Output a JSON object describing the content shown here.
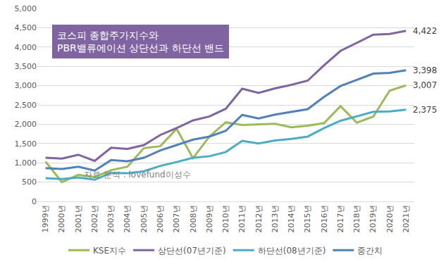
{
  "chart_data": {
    "type": "line",
    "title": "코스피 종합주가지수와\nPBR밸류에이션 상단선과 하단선 밴드",
    "annotations": [
      {
        "text": "자료 분석 : lovefund이성수"
      }
    ],
    "categories": [
      "1999년",
      "2000년",
      "2001년",
      "2002년",
      "2003년",
      "2004년",
      "2005년",
      "2006년",
      "2007년",
      "2008년",
      "2009년",
      "2010년",
      "2011년",
      "2012년",
      "2013년",
      "2014년",
      "2015년",
      "2016년",
      "2017년",
      "2018년",
      "2019년",
      "2020년",
      "2021년"
    ],
    "series": [
      {
        "name": "KSE지수",
        "color": "#9BBB59",
        "values": [
          1030,
          500,
          690,
          630,
          810,
          900,
          1380,
          1430,
          1880,
          1120,
          1680,
          2050,
          1980,
          2000,
          2010,
          1920,
          1960,
          2030,
          2470,
          2040,
          2200,
          2870,
          3007
        ],
        "value_labels": [
          null,
          null,
          null,
          null,
          null,
          null,
          null,
          null,
          null,
          null,
          null,
          null,
          null,
          null,
          null,
          null,
          null,
          null,
          null,
          null,
          null,
          null,
          "3,007"
        ]
      },
      {
        "name": "상단선(07년기준)",
        "color": "#8064A2",
        "values": [
          1130,
          1110,
          1210,
          1050,
          1390,
          1360,
          1460,
          1720,
          1900,
          2100,
          2200,
          2400,
          2920,
          2810,
          2930,
          3020,
          3130,
          3530,
          3900,
          4110,
          4320,
          4340,
          4422
        ],
        "value_labels": [
          null,
          null,
          null,
          null,
          null,
          null,
          null,
          null,
          null,
          null,
          null,
          null,
          null,
          null,
          null,
          null,
          null,
          null,
          null,
          null,
          null,
          null,
          "4,422"
        ]
      },
      {
        "name": "하단선(08년기준)",
        "color": "#4BACC6",
        "values": [
          600,
          580,
          620,
          560,
          740,
          730,
          780,
          920,
          1020,
          1130,
          1170,
          1280,
          1570,
          1500,
          1580,
          1620,
          1680,
          1900,
          2090,
          2200,
          2320,
          2330,
          2375
        ],
        "value_labels": [
          null,
          null,
          null,
          null,
          null,
          null,
          null,
          null,
          null,
          null,
          null,
          null,
          null,
          null,
          null,
          null,
          null,
          null,
          null,
          null,
          null,
          null,
          "2,375"
        ]
      },
      {
        "name": "중간치",
        "color": "#4F81BD",
        "values": [
          860,
          840,
          900,
          800,
          1070,
          1040,
          1130,
          1320,
          1460,
          1600,
          1680,
          1830,
          2240,
          2150,
          2250,
          2320,
          2390,
          2710,
          2990,
          3150,
          3310,
          3330,
          3398
        ],
        "value_labels": [
          null,
          null,
          null,
          null,
          null,
          null,
          null,
          null,
          null,
          null,
          null,
          null,
          null,
          null,
          null,
          null,
          null,
          null,
          null,
          null,
          null,
          null,
          "3,398"
        ]
      }
    ],
    "ylim": [
      0,
      5000
    ],
    "yticks": [
      0,
      500,
      {
        "value": 1000,
        "label": "1,000"
      },
      {
        "value": 1500,
        "label": "1,500"
      },
      {
        "value": 2000,
        "label": "2,000"
      },
      {
        "value": 2500,
        "label": "2,500"
      },
      {
        "value": 3000,
        "label": "3,000"
      },
      {
        "value": 3500,
        "label": "3,500"
      },
      {
        "value": 4000,
        "label": "4,000"
      },
      {
        "value": 4500,
        "label": "4,500"
      },
      {
        "value": 5000,
        "label": "5,000"
      }
    ],
    "grid": true,
    "legend": "bottom"
  }
}
